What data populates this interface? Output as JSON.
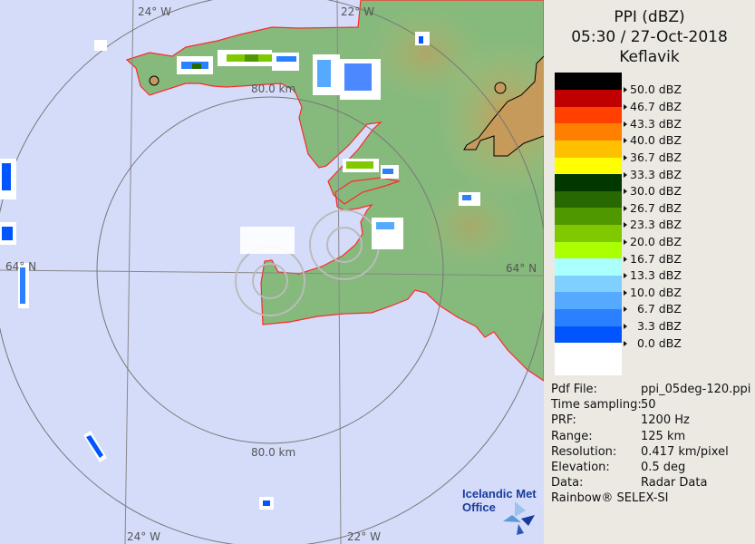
{
  "map": {
    "labels": {
      "lon_24_top": "24° W",
      "lon_22_top": "22° W",
      "lon_24_bottom": "24° W",
      "lon_22_bottom": "22° W",
      "lat_64_left": "64° N",
      "lat_64_right": "64° N",
      "range_top": "80.0 km",
      "range_bottom": "80.0 km"
    },
    "colors": {
      "sea": "#d5dcfa",
      "land": "#7fb77a",
      "coast": "#ff2020",
      "highland": "#c9a062"
    },
    "logo": {
      "line1": "Icelandic Met",
      "line2": "Office"
    }
  },
  "panel": {
    "title": "PPI (dBZ)",
    "datetime": "05:30 / 27-Oct-2018",
    "site": "Keflavik",
    "legend": [
      {
        "color": "#000000",
        "label": "50.0 dBZ"
      },
      {
        "color": "#c00000",
        "label": "46.7 dBZ"
      },
      {
        "color": "#ff4000",
        "label": "43.3 dBZ"
      },
      {
        "color": "#ff8000",
        "label": "40.0 dBZ"
      },
      {
        "color": "#ffc000",
        "label": "36.7 dBZ"
      },
      {
        "color": "#ffff00",
        "label": "33.3 dBZ"
      },
      {
        "color": "#003800",
        "label": "30.0 dBZ"
      },
      {
        "color": "#286800",
        "label": "26.7 dBZ"
      },
      {
        "color": "#509800",
        "label": "23.3 dBZ"
      },
      {
        "color": "#80c800",
        "label": "20.0 dBZ"
      },
      {
        "color": "#aaff00",
        "label": "16.7 dBZ"
      },
      {
        "color": "#aaffff",
        "label": "13.3 dBZ"
      },
      {
        "color": "#80d0ff",
        "label": "10.0 dBZ"
      },
      {
        "color": "#55aaff",
        "label": "  6.7 dBZ"
      },
      {
        "color": "#2a80ff",
        "label": "  3.3 dBZ"
      },
      {
        "color": "#0055ff",
        "label": "  0.0 dBZ"
      },
      {
        "color": "#ffffff",
        "label": ""
      }
    ],
    "info": [
      {
        "key": "Pdf File:",
        "value": "ppi_05deg-120.ppi"
      },
      {
        "key": "Time sampling:",
        "value": "50"
      },
      {
        "key": "PRF:",
        "value": "1200 Hz"
      },
      {
        "key": "Range:",
        "value": "125 km"
      },
      {
        "key": "Resolution:",
        "value": "0.417 km/pixel"
      },
      {
        "key": "Elevation:",
        "value": "0.5 deg"
      },
      {
        "key": "Data:",
        "value": "Radar Data"
      }
    ],
    "footer": "Rainbow® SELEX-SI"
  }
}
